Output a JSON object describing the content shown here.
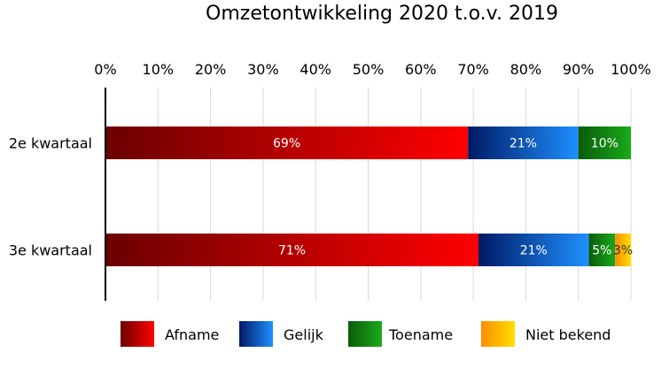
{
  "chart_data": {
    "type": "bar",
    "orientation": "horizontal",
    "stacked": true,
    "title": "Omzetontwikkeling 2020 t.o.v. 2019",
    "xlabel": "",
    "ylabel": "",
    "xlim": [
      0,
      100
    ],
    "x_ticks": [
      "0%",
      "10%",
      "20%",
      "30%",
      "40%",
      "50%",
      "60%",
      "70%",
      "80%",
      "90%",
      "100%"
    ],
    "categories": [
      "2e kwartaal",
      "3e kwartaal"
    ],
    "series": [
      {
        "name": "Afname",
        "values": [
          69,
          71
        ],
        "labels": [
          "69%",
          "71%"
        ],
        "color_start": "#6b0000",
        "color_end": "#ff0000"
      },
      {
        "name": "Gelijk",
        "values": [
          21,
          21
        ],
        "labels": [
          "21%",
          "21%"
        ],
        "color_start": "#001a66",
        "color_end": "#1e90ff"
      },
      {
        "name": "Toename",
        "values": [
          10,
          5
        ],
        "labels": [
          "10%",
          "5%"
        ],
        "color_start": "#0a5c0a",
        "color_end": "#1aaa1a"
      },
      {
        "name": "Niet bekend",
        "values": [
          0,
          3
        ],
        "labels": [
          "",
          "3%"
        ],
        "color_start": "#ff8c00",
        "color_end": "#ffe000"
      }
    ],
    "grid": true,
    "legend_position": "bottom"
  }
}
